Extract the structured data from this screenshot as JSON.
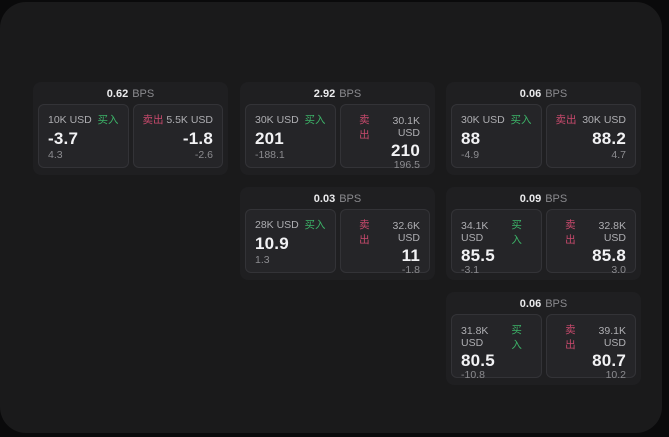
{
  "labels": {
    "bps_suffix": "BPS",
    "buy": "买入",
    "sell": "卖出"
  },
  "colors": {
    "buy_green": "#3cb368",
    "sell_red": "#c94a6d",
    "window_bg": "#1a1a1b",
    "card_bg": "#1f1f21",
    "panel_bg": "#252528"
  },
  "cards": [
    {
      "bps": "0.62",
      "col": 0,
      "row": 0,
      "buy": {
        "size": "10K USD",
        "value": "-3.7",
        "delta": "4.3"
      },
      "sell": {
        "size": "5.5K USD",
        "value": "-1.8",
        "delta": "-2.6"
      }
    },
    {
      "bps": "2.92",
      "col": 1,
      "row": 0,
      "buy": {
        "size": "30K USD",
        "value": "201",
        "delta": "-188.1"
      },
      "sell": {
        "size": "30.1K USD",
        "value": "210",
        "delta": "196.5"
      }
    },
    {
      "bps": "0.06",
      "col": 2,
      "row": 0,
      "buy": {
        "size": "30K USD",
        "value": "88",
        "delta": "-4.9"
      },
      "sell": {
        "size": "30K USD",
        "value": "88.2",
        "delta": "4.7"
      }
    },
    {
      "bps": "0.03",
      "col": 1,
      "row": 1,
      "buy": {
        "size": "28K USD",
        "value": "10.9",
        "delta": "1.3"
      },
      "sell": {
        "size": "32.6K USD",
        "value": "11",
        "delta": "-1.8"
      }
    },
    {
      "bps": "0.09",
      "col": 2,
      "row": 1,
      "buy": {
        "size": "34.1K USD",
        "value": "85.5",
        "delta": "-3.1"
      },
      "sell": {
        "size": "32.8K USD",
        "value": "85.8",
        "delta": "3.0"
      }
    },
    {
      "bps": "0.06",
      "col": 2,
      "row": 2,
      "buy": {
        "size": "31.8K USD",
        "value": "80.5",
        "delta": "-10.8"
      },
      "sell": {
        "size": "39.1K USD",
        "value": "80.7",
        "delta": "10.2"
      }
    }
  ]
}
